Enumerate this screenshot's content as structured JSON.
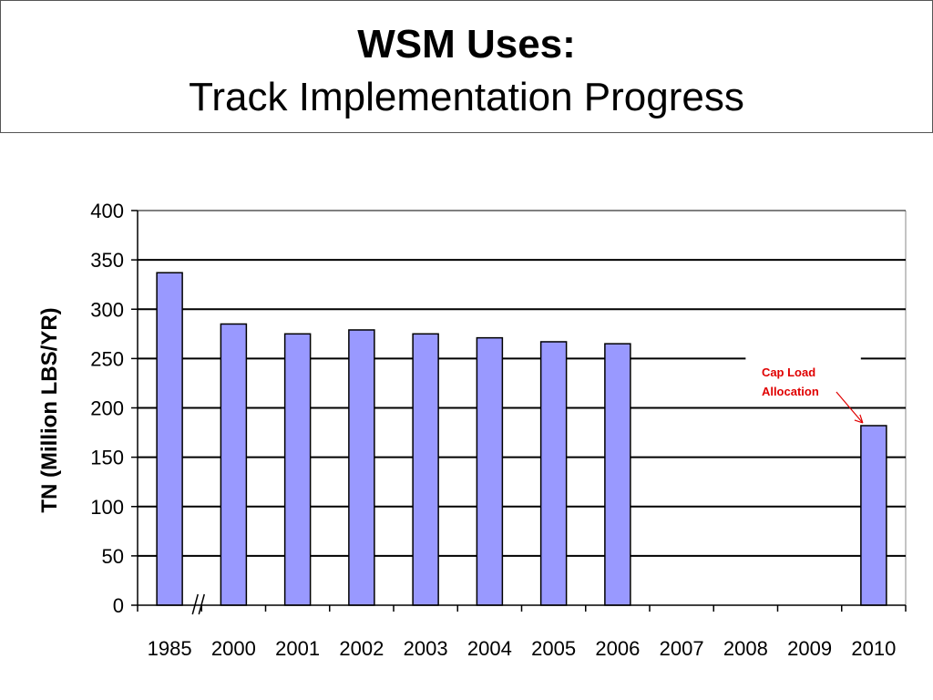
{
  "header": {
    "title": "WSM Uses:",
    "subtitle": "Track Implementation Progress"
  },
  "chart_data": {
    "type": "bar",
    "categories": [
      "1985",
      "2000",
      "2001",
      "2002",
      "2003",
      "2004",
      "2005",
      "2006",
      "2007",
      "2008",
      "2009",
      "2010"
    ],
    "values": [
      337,
      285,
      275,
      279,
      275,
      271,
      267,
      265,
      null,
      null,
      null,
      182
    ],
    "title": "",
    "xlabel": "",
    "ylabel": "TN (Million LBS/YR)",
    "ylim": [
      0,
      400
    ],
    "yticks": [
      0,
      50,
      100,
      150,
      200,
      250,
      300,
      350,
      400
    ],
    "grid": true,
    "axis_break": "//",
    "annotation": {
      "text": [
        "Cap Load",
        "Allocation"
      ],
      "target_category": "2010",
      "color": "#e00000"
    },
    "colors": {
      "bar_fill": "#9999ff",
      "bar_stroke": "#000000",
      "grid": "#000000"
    }
  }
}
